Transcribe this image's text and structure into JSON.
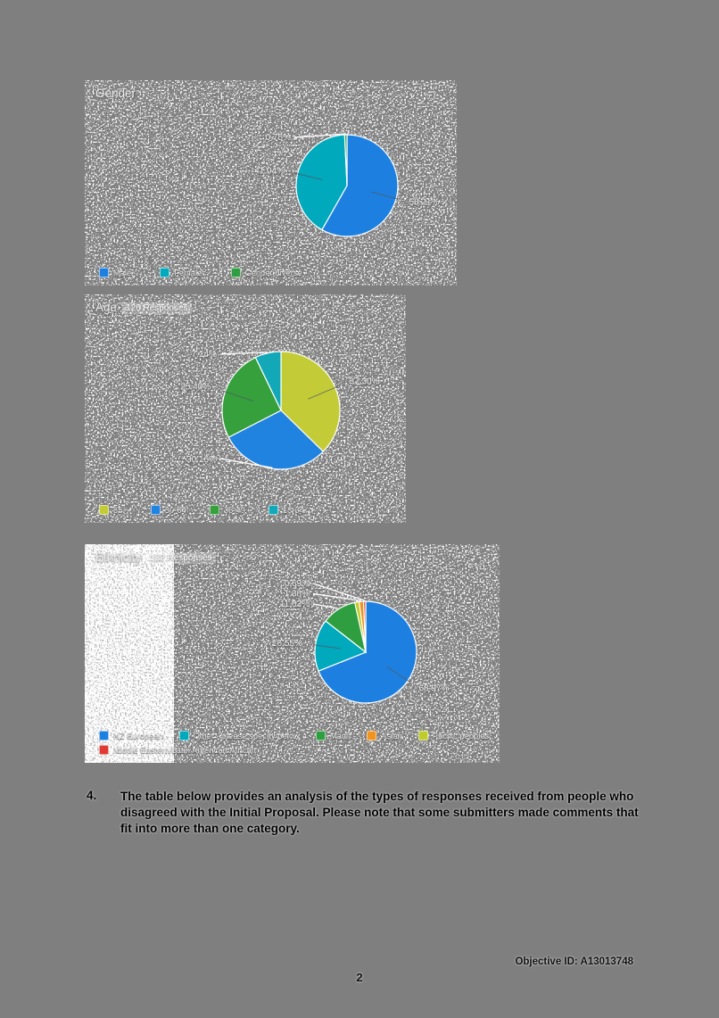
{
  "page": {
    "number": "2",
    "objective_id": "Objective ID: A13013748"
  },
  "paragraph": {
    "number": "4.",
    "text": "The table below provides an analysis of the types of responses received from people who disagreed with the Initial Proposal. Please note that some submitters made comments that fit into more than one category."
  },
  "chart_data": [
    {
      "type": "pie",
      "title": "Gender",
      "responses": "",
      "legend_position": "bottom",
      "slices": [
        {
          "name": "Male",
          "value": 58.21,
          "label": "58.21%",
          "color": "#1d80e0",
          "label_mode": "auto"
        },
        {
          "name": "Female",
          "value": 41.04,
          "label": "41.04%",
          "color": "#00a9bc",
          "label_mode": "auto"
        },
        {
          "name": "Gender diverse",
          "value": 0.75,
          "label": "0.75%",
          "color": "#2f9e41",
          "label_mode": "stack-top"
        }
      ],
      "legend": [
        "Male",
        "Female",
        "Gender diverse"
      ]
    },
    {
      "type": "pie",
      "title": "Age",
      "responses": "126 Responses",
      "legend_position": "bottom",
      "slices": [
        {
          "name": "65+",
          "value": 37.3,
          "label": "37.30%",
          "color": "#c3cc37",
          "label_mode": "auto"
        },
        {
          "name": "50-64",
          "value": 30.16,
          "label": "30.16%",
          "color": "#2183e0",
          "label_mode": "stack-bottom"
        },
        {
          "name": "35-49",
          "value": 25.4,
          "label": "25.40%",
          "color": "#35a03c",
          "label_mode": "auto"
        },
        {
          "name": "18-34",
          "value": 7.14,
          "label": "7.14%",
          "color": "#13a8b8",
          "label_mode": "stack-top"
        }
      ],
      "legend": [
        "65+",
        "50-64",
        "35-49",
        "18-34"
      ]
    },
    {
      "type": "pie",
      "title": "Ethnicity",
      "responses": "132 Responses",
      "legend_position": "bottom",
      "slices": [
        {
          "name": "NZ European",
          "value": 68.97,
          "label": "68.97%",
          "color": "#1d80e0",
          "label_mode": "auto"
        },
        {
          "name": "Other - please specify below",
          "value": 16.55,
          "label": "16.55%",
          "color": "#00a9bc",
          "label_mode": "auto"
        },
        {
          "name": "Maori",
          "value": 11.03,
          "label": "11.03%",
          "color": "#2f9e41",
          "label_mode": "stack-top"
        },
        {
          "name": "Pacific peoples",
          "value": 1.38,
          "label": "",
          "color": "#bdcc2a",
          "label_mode": "hidden"
        },
        {
          "name": "Asian",
          "value": 1.38,
          "label": "1.38%",
          "color": "#f0941f",
          "label_mode": "stack-top"
        },
        {
          "name": "Middle Eastern/Latin American/African",
          "value": 0.69,
          "label": "0.69%",
          "color": "#e03a34",
          "label_mode": "stack-top"
        }
      ],
      "legend": [
        "NZ European",
        "Other - please specify below",
        "Maori",
        "Asian",
        "Pacific peoples",
        "Middle Eastern/Latin American/African"
      ]
    }
  ]
}
